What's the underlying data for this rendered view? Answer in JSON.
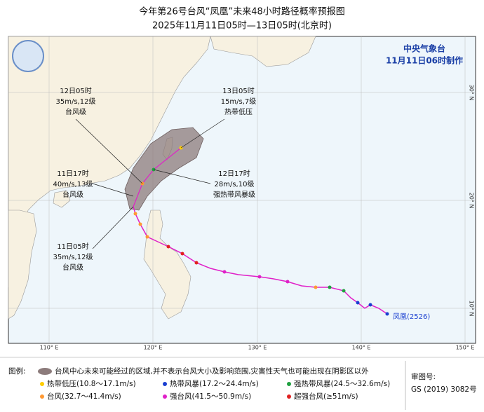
{
  "header": {
    "title": "今年第26号台风“凤凰”未来48小时路径概率预报图",
    "subtitle": "2025年11月11日05时—13日05时(北京时)"
  },
  "agency": {
    "name": "中央气象台",
    "issued": "11月11日06时制作"
  },
  "annotations": [
    {
      "time": "12日05时",
      "wind": "35m/s,12级",
      "category": "台风级"
    },
    {
      "time": "11日17时",
      "wind": "40m/s,13级",
      "category": "台风级"
    },
    {
      "time": "11日05时",
      "wind": "35m/s,12级",
      "category": "台风级"
    },
    {
      "time": "13日05时",
      "wind": "15m/s,7级",
      "category": "热带低压"
    },
    {
      "time": "12日17时",
      "wind": "28m/s,10级",
      "category": "强热带风暴级"
    }
  ],
  "storm_label": "凤凰(2526)",
  "longitude_labels": [
    "110° E",
    "120° E",
    "130° E",
    "140° E",
    "150° E"
  ],
  "latitude_labels": [
    "10° N",
    "20° N",
    "30° N"
  ],
  "legend": {
    "heading": "图例:",
    "cone_note": "台风中心未来可能经过的区域,并不表示台风大小及影响范围,灾害性天气也可能出现在阴影区以外",
    "items": [
      "热带低压(10.8～17.1m/s)",
      "热带风暴(17.2～24.4m/s)",
      "强热带风暴(24.5～32.6m/s)",
      "台风(32.7～41.4m/s)",
      "强台风(41.5～50.9m/s)",
      "超强台风(≥51m/s)"
    ]
  },
  "approval": {
    "label": "审图号:",
    "number": "GS (2019) 3082号"
  }
}
